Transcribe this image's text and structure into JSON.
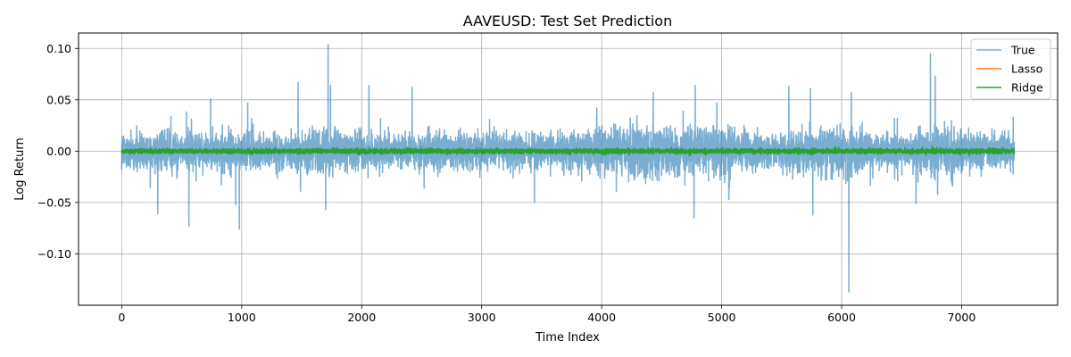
{
  "chart_data": {
    "type": "line",
    "title": "AAVEUSD: Test Set Prediction",
    "xlabel": "Time Index",
    "ylabel": "Log Return",
    "xlim": [
      -360,
      7800
    ],
    "ylim": [
      -0.15,
      0.115
    ],
    "x_ticks": [
      {
        "value": 0,
        "label": "0"
      },
      {
        "value": 1000,
        "label": "1000"
      },
      {
        "value": 2000,
        "label": "2000"
      },
      {
        "value": 3000,
        "label": "3000"
      },
      {
        "value": 4000,
        "label": "4000"
      },
      {
        "value": 5000,
        "label": "5000"
      },
      {
        "value": 6000,
        "label": "6000"
      },
      {
        "value": 7000,
        "label": "7000"
      }
    ],
    "y_ticks": [
      {
        "value": 0.1,
        "label": "0.10"
      },
      {
        "value": 0.05,
        "label": "0.05"
      },
      {
        "value": 0.0,
        "label": "0.00"
      },
      {
        "value": -0.05,
        "label": "−0.05"
      },
      {
        "value": -0.1,
        "label": "−0.10"
      }
    ],
    "grid": true,
    "legend_position": "top-right",
    "n_points": 7440,
    "series": [
      {
        "name": "True",
        "color": "#1f77b4",
        "opacity": 0.6,
        "approx_std": 0.0085,
        "spikes": [
          {
            "x": 300,
            "y": -0.061
          },
          {
            "x": 410,
            "y": 0.034
          },
          {
            "x": 540,
            "y": 0.038
          },
          {
            "x": 560,
            "y": -0.073
          },
          {
            "x": 620,
            "y": -0.029
          },
          {
            "x": 740,
            "y": 0.051
          },
          {
            "x": 950,
            "y": -0.052
          },
          {
            "x": 980,
            "y": -0.076
          },
          {
            "x": 1050,
            "y": 0.047
          },
          {
            "x": 1470,
            "y": 0.067
          },
          {
            "x": 1490,
            "y": -0.039
          },
          {
            "x": 1720,
            "y": 0.104
          },
          {
            "x": 1740,
            "y": 0.064
          },
          {
            "x": 1700,
            "y": -0.057
          },
          {
            "x": 2060,
            "y": 0.064
          },
          {
            "x": 2420,
            "y": 0.062
          },
          {
            "x": 2520,
            "y": -0.036
          },
          {
            "x": 3440,
            "y": -0.05
          },
          {
            "x": 3960,
            "y": 0.042
          },
          {
            "x": 4430,
            "y": 0.057
          },
          {
            "x": 4780,
            "y": 0.064
          },
          {
            "x": 4770,
            "y": -0.065
          },
          {
            "x": 4960,
            "y": 0.047
          },
          {
            "x": 5060,
            "y": -0.047
          },
          {
            "x": 5560,
            "y": 0.063
          },
          {
            "x": 5740,
            "y": 0.061
          },
          {
            "x": 5760,
            "y": -0.062
          },
          {
            "x": 6060,
            "y": -0.137
          },
          {
            "x": 6080,
            "y": 0.057
          },
          {
            "x": 6240,
            "y": -0.033
          },
          {
            "x": 6440,
            "y": 0.032
          },
          {
            "x": 6620,
            "y": -0.051
          },
          {
            "x": 6740,
            "y": 0.095
          },
          {
            "x": 6780,
            "y": 0.073
          },
          {
            "x": 6800,
            "y": -0.042
          },
          {
            "x": 7430,
            "y": 0.033
          }
        ]
      },
      {
        "name": "Lasso",
        "color": "#ff7f0e",
        "opacity": 1.0,
        "approx_std": 0.0004
      },
      {
        "name": "Ridge",
        "color": "#2ca02c",
        "opacity": 1.0,
        "approx_std": 0.0012
      }
    ]
  }
}
